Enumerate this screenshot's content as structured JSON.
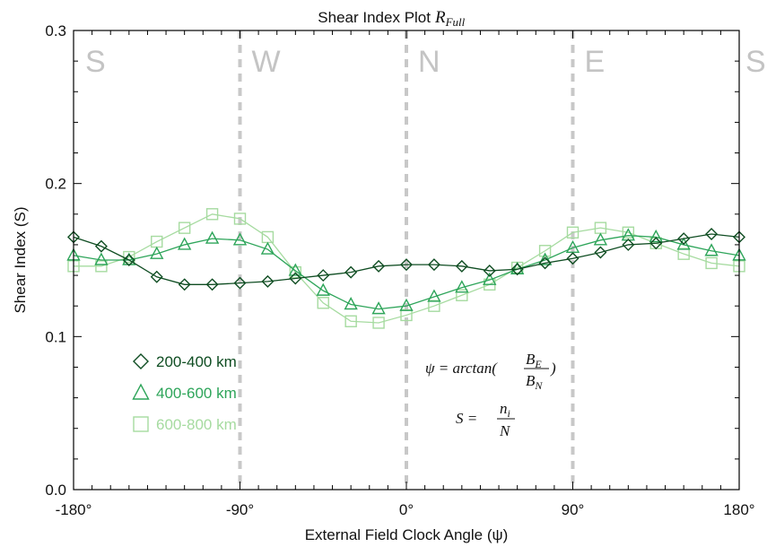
{
  "chart_data": {
    "type": "line",
    "title": "Shear Index Plot",
    "title_symbol": "R",
    "title_symbol_sub": "Full",
    "xlabel": "External Field Clock Angle (ψ)",
    "ylabel": "Shear Index (S)",
    "xlim": [
      -180,
      180
    ],
    "ylim": [
      0.0,
      0.3
    ],
    "xticks": [
      -180,
      -90,
      0,
      90,
      180
    ],
    "xtick_labels": [
      "-180°",
      "-90°",
      "0°",
      "90°",
      "180°"
    ],
    "yticks": [
      0.0,
      0.1,
      0.2,
      0.3
    ],
    "ytick_labels": [
      "0.0",
      "0.1",
      "0.2",
      "0.3"
    ],
    "grid": false,
    "vertical_markers": [
      {
        "x": -90,
        "label": "W"
      },
      {
        "x": 0,
        "label": "N"
      },
      {
        "x": 90,
        "label": "E"
      }
    ],
    "direction_labels": [
      {
        "x": -180,
        "label": "S"
      },
      {
        "x": -90,
        "label": "W"
      },
      {
        "x": 0,
        "label": "N"
      },
      {
        "x": 90,
        "label": "E"
      },
      {
        "x": 180,
        "label": "S"
      }
    ],
    "legend_position": "lower-left",
    "series": [
      {
        "name": "200-400 km",
        "marker": "diamond",
        "color": "#0f4d22",
        "x": [
          -180,
          -165,
          -150,
          -135,
          -120,
          -105,
          -90,
          -75,
          -60,
          -45,
          -30,
          -15,
          0,
          15,
          30,
          45,
          60,
          75,
          90,
          105,
          120,
          135,
          150,
          165,
          180
        ],
        "y": [
          0.165,
          0.159,
          0.15,
          0.139,
          0.134,
          0.134,
          0.135,
          0.136,
          0.138,
          0.14,
          0.142,
          0.146,
          0.147,
          0.147,
          0.146,
          0.143,
          0.144,
          0.148,
          0.151,
          0.155,
          0.16,
          0.161,
          0.164,
          0.167,
          0.165
        ]
      },
      {
        "name": "400-600 km",
        "marker": "triangle",
        "color": "#2ea55a",
        "x": [
          -180,
          -165,
          -150,
          -135,
          -120,
          -105,
          -90,
          -75,
          -60,
          -45,
          -30,
          -15,
          0,
          15,
          30,
          45,
          60,
          75,
          90,
          105,
          120,
          135,
          150,
          165,
          180
        ],
        "y": [
          0.153,
          0.15,
          0.15,
          0.154,
          0.16,
          0.164,
          0.163,
          0.157,
          0.143,
          0.13,
          0.121,
          0.118,
          0.12,
          0.126,
          0.132,
          0.137,
          0.144,
          0.15,
          0.158,
          0.163,
          0.166,
          0.165,
          0.16,
          0.156,
          0.153
        ]
      },
      {
        "name": "600-800 km",
        "marker": "square",
        "color": "#a6dba0",
        "x": [
          -180,
          -165,
          -150,
          -135,
          -120,
          -105,
          -90,
          -75,
          -60,
          -45,
          -30,
          -15,
          0,
          15,
          30,
          45,
          60,
          75,
          90,
          105,
          120,
          135,
          150,
          165,
          180
        ],
        "y": [
          0.146,
          0.146,
          0.152,
          0.162,
          0.171,
          0.18,
          0.177,
          0.165,
          0.142,
          0.122,
          0.11,
          0.109,
          0.114,
          0.12,
          0.127,
          0.134,
          0.145,
          0.156,
          0.168,
          0.171,
          0.168,
          0.161,
          0.154,
          0.148,
          0.146
        ]
      }
    ],
    "annotations": {
      "psi_lhs": "ψ = arctan(",
      "psi_num": "B",
      "psi_num_sub": "E",
      "psi_den": "B",
      "psi_den_sub": "N",
      "psi_close": ")",
      "s_lhs": "S =",
      "s_num": "n",
      "s_num_sub": "i",
      "s_den": "N"
    }
  }
}
